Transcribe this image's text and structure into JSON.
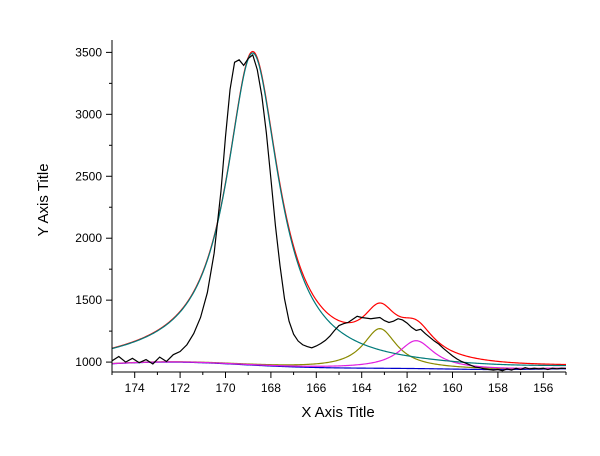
{
  "chart_data": {
    "type": "line",
    "title": "",
    "xlabel": "X Axis Title",
    "ylabel": "Y Axis Title",
    "xlim": [
      175,
      155
    ],
    "ylim": [
      920,
      3600
    ],
    "x_reversed": true,
    "grid": false,
    "legend": "none",
    "xticks": [
      174,
      172,
      170,
      168,
      166,
      164,
      162,
      160,
      158,
      156
    ],
    "yticks": [
      1000,
      1500,
      2000,
      2500,
      3000,
      3500
    ],
    "fit_params": {
      "baseline": 950,
      "peaks": [
        {
          "name": "peak-1",
          "center": 168.8,
          "amplitude": 2520,
          "fwhm": 2.8,
          "color": "#007a7a"
        },
        {
          "name": "peak-2",
          "center": 163.2,
          "amplitude": 320,
          "fwhm": 1.8,
          "color": "#8a8a00"
        },
        {
          "name": "peak-3",
          "center": 161.6,
          "amplitude": 225,
          "fwhm": 1.9,
          "color": "#e020e0"
        }
      ]
    },
    "series": [
      {
        "color": "#000000",
        "role": "raw-data",
        "x": [
          175,
          174.7,
          174.4,
          174.1,
          173.8,
          173.5,
          173.2,
          172.9,
          172.6,
          172.3,
          172.0,
          171.7,
          171.4,
          171.1,
          170.8,
          170.5,
          170.2,
          170.0,
          169.8,
          169.6,
          169.4,
          169.2,
          169.0,
          168.8,
          168.6,
          168.4,
          168.2,
          168.0,
          167.8,
          167.6,
          167.4,
          167.2,
          167.0,
          166.8,
          166.6,
          166.4,
          166.2,
          166.0,
          165.8,
          165.6,
          165.4,
          165.2,
          165.0,
          164.8,
          164.6,
          164.4,
          164.2,
          164.0,
          163.8,
          163.6,
          163.4,
          163.2,
          163.0,
          162.8,
          162.6,
          162.4,
          162.2,
          162.0,
          161.8,
          161.6,
          161.4,
          161.2,
          161.0,
          160.8,
          160.6,
          160.4,
          160.2,
          160.0,
          159.8,
          159.6,
          159.4,
          159.2,
          159.0,
          158.8,
          158.6,
          158.4,
          158.2,
          158.0,
          157.8,
          157.6,
          157.4,
          157.2,
          157.0,
          156.8,
          156.6,
          156.4,
          156.2,
          156.0,
          155.8,
          155.6,
          155.4,
          155.2,
          155.0
        ],
        "y": [
          1010,
          1045,
          1000,
          1030,
          995,
          1020,
          985,
          1040,
          1005,
          1060,
          1085,
          1140,
          1230,
          1360,
          1560,
          1880,
          2380,
          2820,
          3200,
          3420,
          3440,
          3395,
          3450,
          3480,
          3360,
          3150,
          2850,
          2480,
          2100,
          1780,
          1510,
          1330,
          1225,
          1170,
          1140,
          1125,
          1115,
          1130,
          1150,
          1175,
          1210,
          1255,
          1295,
          1310,
          1320,
          1345,
          1370,
          1360,
          1355,
          1350,
          1355,
          1360,
          1335,
          1320,
          1330,
          1350,
          1340,
          1315,
          1280,
          1255,
          1265,
          1230,
          1200,
          1170,
          1145,
          1110,
          1080,
          1050,
          1025,
          1005,
          990,
          975,
          960,
          955,
          945,
          940,
          935,
          940,
          930,
          945,
          935,
          950,
          940,
          955,
          945,
          950,
          945,
          950,
          940,
          950,
          945,
          950,
          948
        ]
      },
      {
        "color": "#ff0000",
        "role": "cumulative-fit"
      },
      {
        "color": "#007a7a",
        "role": "fit-peak-1"
      },
      {
        "color": "#8a8a00",
        "role": "fit-peak-2"
      },
      {
        "color": "#e020e0",
        "role": "fit-peak-3"
      },
      {
        "color": "#0000cc",
        "role": "baseline"
      }
    ]
  }
}
